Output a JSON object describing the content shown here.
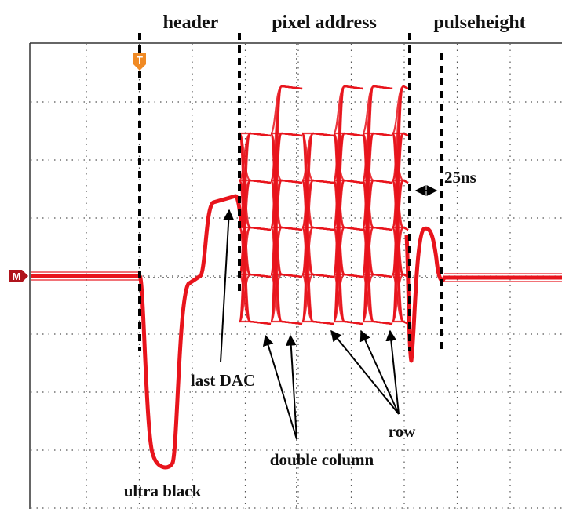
{
  "sections": [
    "header",
    "pixel address",
    "pulseheight"
  ],
  "annotations": {
    "timing": "25ns",
    "last_dac": "last DAC",
    "ultra_black": "ultra black",
    "double_column": "double column",
    "row": "row"
  },
  "markers": {
    "trigger": "T",
    "level": "M"
  }
}
